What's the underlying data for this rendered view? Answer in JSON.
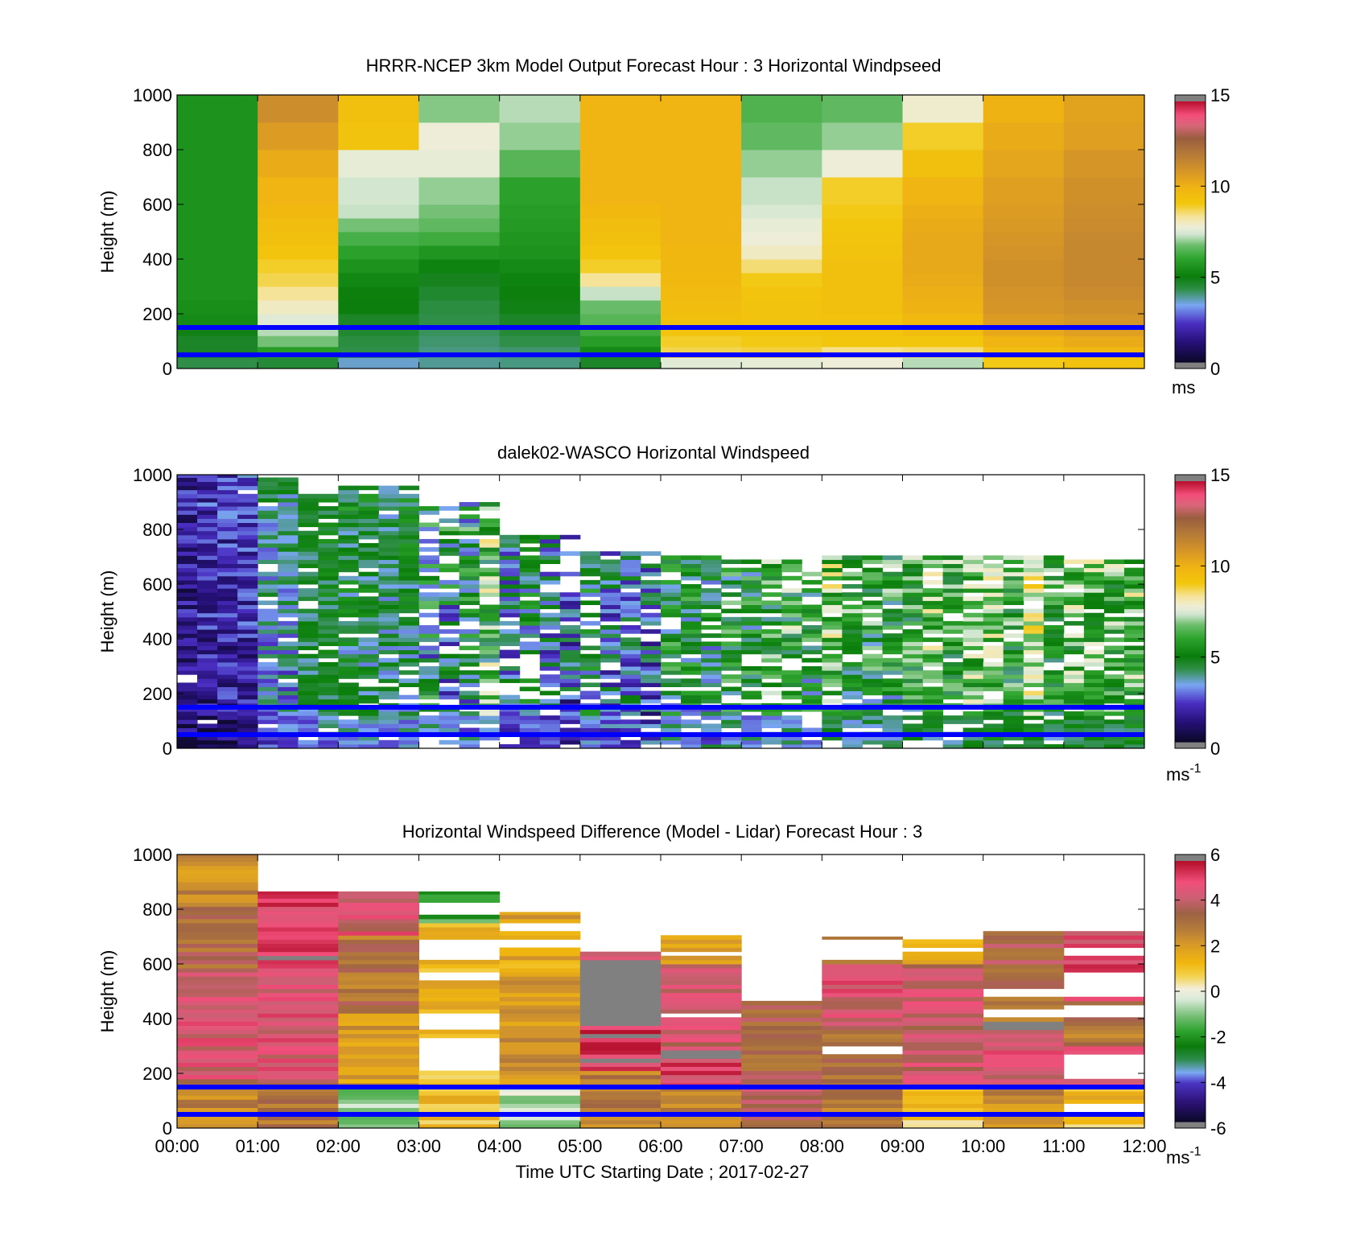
{
  "chart_data": [
    {
      "type": "heatmap",
      "title": "HRRR-NCEP 3km Model Output   Forecast Hour : 3 Horizontal Windpseed",
      "ylabel": "Height (m)",
      "xlabel": "",
      "xlim": [
        0,
        12
      ],
      "ylim": [
        0,
        1000
      ],
      "yticks": [
        0,
        200,
        400,
        600,
        800,
        1000
      ],
      "x_tick_hours": [
        0,
        1,
        2,
        3,
        4,
        5,
        6,
        7,
        8,
        9,
        10,
        11,
        12
      ],
      "x_tick_labels_shown": false,
      "colorbar": {
        "min": 0,
        "max": 15,
        "ticks": [
          0,
          5,
          10,
          15
        ],
        "unit": "ms",
        "unit_sup": "",
        "colormap": "speed"
      },
      "reference_lines_m": [
        150,
        50
      ],
      "reference_line_color": "#0000ff",
      "column_hours": [
        0,
        1,
        2,
        3,
        4,
        5,
        6,
        7,
        8,
        9,
        10,
        11
      ],
      "column_width_h": 1,
      "layer_heights_m": [
        0,
        40,
        80,
        120,
        160,
        200,
        250,
        300,
        350,
        400,
        450,
        500,
        550,
        600,
        700,
        800,
        900
      ],
      "values_ms": [
        [
          4.2,
          4.6,
          4.6,
          4.8,
          5.3,
          5.4,
          5.5,
          5.5,
          5.5,
          5.5,
          5.5,
          5.5,
          5.5,
          5.5,
          5.5,
          5.5,
          5.5
        ],
        [
          4.4,
          5.8,
          6.8,
          7.2,
          7.6,
          8.0,
          8.4,
          8.8,
          9.0,
          9.3,
          9.5,
          9.6,
          9.8,
          10.0,
          10.3,
          10.8,
          11.3
        ],
        [
          3.5,
          4.2,
          4.3,
          4.5,
          4.6,
          4.9,
          5.0,
          5.2,
          5.5,
          5.9,
          6.3,
          6.8,
          7.3,
          7.4,
          7.7,
          9.4,
          9.5
        ],
        [
          3.8,
          3.9,
          4.0,
          4.1,
          4.2,
          4.3,
          4.5,
          4.7,
          5.1,
          5.6,
          6.2,
          6.6,
          6.8,
          7.0,
          7.7,
          7.8,
          6.9
        ],
        [
          3.9,
          4.0,
          4.2,
          4.4,
          4.6,
          4.8,
          5.0,
          5.1,
          5.3,
          5.5,
          5.6,
          5.7,
          5.8,
          5.9,
          6.5,
          7.0,
          7.2
        ],
        [
          4.6,
          5.3,
          5.8,
          6.2,
          6.5,
          6.7,
          7.3,
          8.4,
          9.0,
          9.3,
          9.5,
          9.6,
          9.8,
          10.0,
          10.0,
          10.0,
          10.0
        ],
        [
          7.6,
          8.8,
          9.0,
          9.3,
          9.5,
          9.6,
          9.7,
          9.8,
          9.9,
          9.9,
          10.0,
          10.0,
          10.0,
          10.0,
          10.0,
          10.0,
          10.0
        ],
        [
          7.7,
          8.9,
          9.1,
          9.2,
          9.4,
          9.4,
          9.3,
          9.1,
          8.6,
          8.0,
          7.8,
          7.7,
          7.5,
          7.3,
          7.0,
          6.6,
          6.4
        ],
        [
          7.8,
          8.5,
          9.2,
          9.3,
          9.4,
          9.5,
          9.5,
          9.5,
          9.5,
          9.4,
          9.3,
          9.2,
          9.1,
          9.0,
          7.8,
          7.0,
          6.6
        ],
        [
          7.2,
          8.6,
          9.2,
          9.6,
          9.8,
          10.1,
          10.2,
          10.3,
          10.4,
          10.4,
          10.4,
          10.3,
          10.2,
          10.0,
          9.5,
          9.0,
          7.9
        ],
        [
          9.1,
          9.6,
          10.0,
          10.4,
          10.8,
          11.0,
          11.1,
          11.2,
          11.2,
          11.1,
          11.0,
          10.9,
          10.8,
          10.7,
          10.5,
          10.3,
          10.1
        ],
        [
          9.4,
          9.9,
          10.3,
          10.7,
          11.0,
          11.2,
          11.4,
          11.5,
          11.5,
          11.5,
          11.5,
          11.4,
          11.3,
          11.2,
          11.0,
          10.7,
          10.6
        ]
      ]
    },
    {
      "type": "heatmap",
      "title": "dalek02-WASCO  Horizontal Windspeed",
      "ylabel": "Height (m)",
      "xlabel": "",
      "xlim": [
        0,
        12
      ],
      "ylim": [
        0,
        1000
      ],
      "yticks": [
        0,
        200,
        400,
        600,
        800,
        1000
      ],
      "x_tick_hours": [
        0,
        1,
        2,
        3,
        4,
        5,
        6,
        7,
        8,
        9,
        10,
        11,
        12
      ],
      "x_tick_labels_shown": false,
      "colorbar": {
        "min": 0,
        "max": 15,
        "ticks": [
          0,
          5,
          10,
          15
        ],
        "unit": "ms",
        "unit_sup": "-1",
        "colormap": "speed"
      },
      "reference_lines_m": [
        150,
        50
      ],
      "reference_line_color": "#0000ff",
      "profile_interval_h": 0.25,
      "gate_spacing_m": 15,
      "column_groups": [
        {
          "from_h": 0.0,
          "to_h": 1.0,
          "top_m": 1000,
          "mean_ms": 1.6,
          "spread_ms": 1.2,
          "missing_fraction": 0.02
        },
        {
          "from_h": 1.0,
          "to_h": 1.5,
          "top_m": 980,
          "mean_ms": 3.5,
          "spread_ms": 1.2,
          "missing_fraction": 0.05
        },
        {
          "from_h": 1.5,
          "to_h": 2.0,
          "top_m": 920,
          "mean_ms": 4.3,
          "spread_ms": 0.9,
          "missing_fraction": 0.1
        },
        {
          "from_h": 2.0,
          "to_h": 3.0,
          "top_m": 960,
          "mean_ms": 4.4,
          "spread_ms": 1.3,
          "missing_fraction": 0.12
        },
        {
          "from_h": 3.0,
          "to_h": 4.0,
          "top_m": 900,
          "mean_ms": 4.8,
          "spread_ms": 2.4,
          "missing_fraction": 0.3
        },
        {
          "from_h": 4.0,
          "to_h": 5.0,
          "top_m": 780,
          "mean_ms": 3.6,
          "spread_ms": 1.8,
          "missing_fraction": 0.2
        },
        {
          "from_h": 5.0,
          "to_h": 6.0,
          "top_m": 720,
          "mean_ms": 3.8,
          "spread_ms": 1.8,
          "missing_fraction": 0.2
        },
        {
          "from_h": 6.0,
          "to_h": 7.0,
          "top_m": 700,
          "mean_ms": 5.0,
          "spread_ms": 2.0,
          "missing_fraction": 0.25
        },
        {
          "from_h": 7.0,
          "to_h": 8.0,
          "top_m": 690,
          "mean_ms": 4.9,
          "spread_ms": 2.2,
          "missing_fraction": 0.25
        },
        {
          "from_h": 8.0,
          "to_h": 9.0,
          "top_m": 700,
          "mean_ms": 5.6,
          "spread_ms": 2.0,
          "missing_fraction": 0.15
        },
        {
          "from_h": 9.0,
          "to_h": 10.0,
          "top_m": 700,
          "mean_ms": 6.0,
          "spread_ms": 1.8,
          "missing_fraction": 0.15
        },
        {
          "from_h": 10.0,
          "to_h": 11.0,
          "top_m": 700,
          "mean_ms": 6.4,
          "spread_ms": 1.8,
          "missing_fraction": 0.15
        },
        {
          "from_h": 11.0,
          "to_h": 12.0,
          "top_m": 680,
          "mean_ms": 6.6,
          "spread_ms": 1.9,
          "missing_fraction": 0.15
        }
      ]
    },
    {
      "type": "heatmap",
      "title": "Horizontal Windspeed Difference (Model - Lidar) Forecast Hour : 3",
      "ylabel": "Height (m)",
      "xlabel": "Time UTC  Starting Date ; 2017-02-27",
      "xlim": [
        0,
        12
      ],
      "ylim": [
        0,
        1000
      ],
      "yticks": [
        0,
        200,
        400,
        600,
        800,
        1000
      ],
      "x_tick_hours": [
        0,
        1,
        2,
        3,
        4,
        5,
        6,
        7,
        8,
        9,
        10,
        11,
        12
      ],
      "x_tick_labels": [
        "00:00",
        "01:00",
        "02:00",
        "03:00",
        "04:00",
        "05:00",
        "06:00",
        "07:00",
        "08:00",
        "09:00",
        "10:00",
        "11:00",
        "12:00"
      ],
      "x_tick_labels_shown": true,
      "colorbar": {
        "min": -6,
        "max": 6,
        "ticks": [
          -6,
          -4,
          -2,
          0,
          2,
          4,
          6
        ],
        "unit": "ms",
        "unit_sup": "-1",
        "colormap": "difference"
      },
      "reference_lines_m": [
        150,
        50
      ],
      "reference_line_color": "#0000ff",
      "gate_spacing_m": 15,
      "columns": [
        {
          "from_h": 0,
          "to_h": 1,
          "top_m": 1000,
          "bands": [
            [
              0,
              170,
              2.8
            ],
            [
              170,
              570,
              4.5
            ],
            [
              570,
              800,
              3.4
            ],
            [
              800,
              1000,
              2.4
            ]
          ],
          "gaps": []
        },
        {
          "from_h": 1,
          "to_h": 2,
          "top_m": 865,
          "bands": [
            [
              0,
              160,
              3.0
            ],
            [
              160,
              600,
              4.6
            ],
            [
              600,
              865,
              5.4
            ]
          ],
          "gaps": []
        },
        {
          "from_h": 2,
          "to_h": 3,
          "top_m": 865,
          "bands": [
            [
              0,
              150,
              -0.8
            ],
            [
              150,
              420,
              2.0
            ],
            [
              420,
              700,
              3.2
            ],
            [
              700,
              865,
              4.5
            ]
          ],
          "gaps": []
        },
        {
          "from_h": 3,
          "to_h": 4,
          "top_m": 865,
          "bands": [
            [
              0,
              150,
              1.0
            ],
            [
              150,
              500,
              1.2
            ],
            [
              500,
              750,
              1.5
            ],
            [
              750,
              865,
              -1.8
            ]
          ],
          "gaps": [
            [
              200,
              320
            ],
            [
              350,
              420
            ],
            [
              540,
              570
            ],
            [
              610,
              680
            ],
            [
              780,
              820
            ]
          ]
        },
        {
          "from_h": 4,
          "to_h": 5,
          "top_m": 790,
          "bands": [
            [
              0,
              150,
              -0.5
            ],
            [
              150,
              550,
              2.3
            ],
            [
              550,
              790,
              1.8
            ]
          ],
          "gaps": [
            [
              660,
              690
            ],
            [
              720,
              745
            ]
          ]
        },
        {
          "from_h": 5,
          "to_h": 6,
          "top_m": 645,
          "bands": [
            [
              0,
              200,
              2.8
            ],
            [
              200,
              365,
              5.5
            ],
            [
              365,
              605,
              7.5
            ],
            [
              605,
              645,
              5.0
            ]
          ],
          "gaps": []
        },
        {
          "from_h": 6,
          "to_h": 7,
          "top_m": 705,
          "bands": [
            [
              0,
              150,
              2.5
            ],
            [
              150,
              250,
              5.2
            ],
            [
              250,
              280,
              7.5
            ],
            [
              280,
              600,
              4.3
            ],
            [
              600,
              705,
              1.6
            ]
          ],
          "gaps": [
            [
              400,
              420
            ],
            [
              620,
              640
            ]
          ]
        },
        {
          "from_h": 7,
          "to_h": 8,
          "top_m": 465,
          "bands": [
            [
              0,
              150,
              4.0
            ],
            [
              150,
              465,
              3.5
            ]
          ],
          "gaps": []
        },
        {
          "from_h": 8,
          "to_h": 9,
          "top_m": 700,
          "bands": [
            [
              0,
              150,
              2.8
            ],
            [
              150,
              350,
              3.2
            ],
            [
              350,
              600,
              4.6
            ],
            [
              600,
              700,
              2.6
            ]
          ],
          "gaps": [
            [
              260,
              300
            ],
            [
              610,
              680
            ]
          ]
        },
        {
          "from_h": 9,
          "to_h": 10,
          "top_m": 690,
          "bands": [
            [
              0,
              150,
              1.0
            ],
            [
              150,
              600,
              4.3
            ],
            [
              600,
              690,
              1.5
            ]
          ],
          "gaps": [
            [
              640,
              660
            ]
          ]
        },
        {
          "from_h": 10,
          "to_h": 11,
          "top_m": 720,
          "bands": [
            [
              0,
              150,
              2.5
            ],
            [
              150,
              350,
              4.7
            ],
            [
              350,
              380,
              7.5
            ],
            [
              380,
              600,
              3.2
            ],
            [
              600,
              720,
              3.6
            ]
          ],
          "gaps": [
            [
              400,
              430
            ],
            [
              470,
              500
            ]
          ]
        },
        {
          "from_h": 11,
          "to_h": 12,
          "top_m": 720,
          "bands": [
            [
              0,
              150,
              1.2
            ],
            [
              150,
              300,
              4.5
            ],
            [
              300,
              460,
              3.0
            ],
            [
              460,
              720,
              5.0
            ]
          ],
          "gaps": [
            [
              40,
              80
            ],
            [
              180,
              270
            ],
            [
              400,
              440
            ],
            [
              480,
              570
            ],
            [
              630,
              660
            ]
          ]
        }
      ]
    }
  ]
}
